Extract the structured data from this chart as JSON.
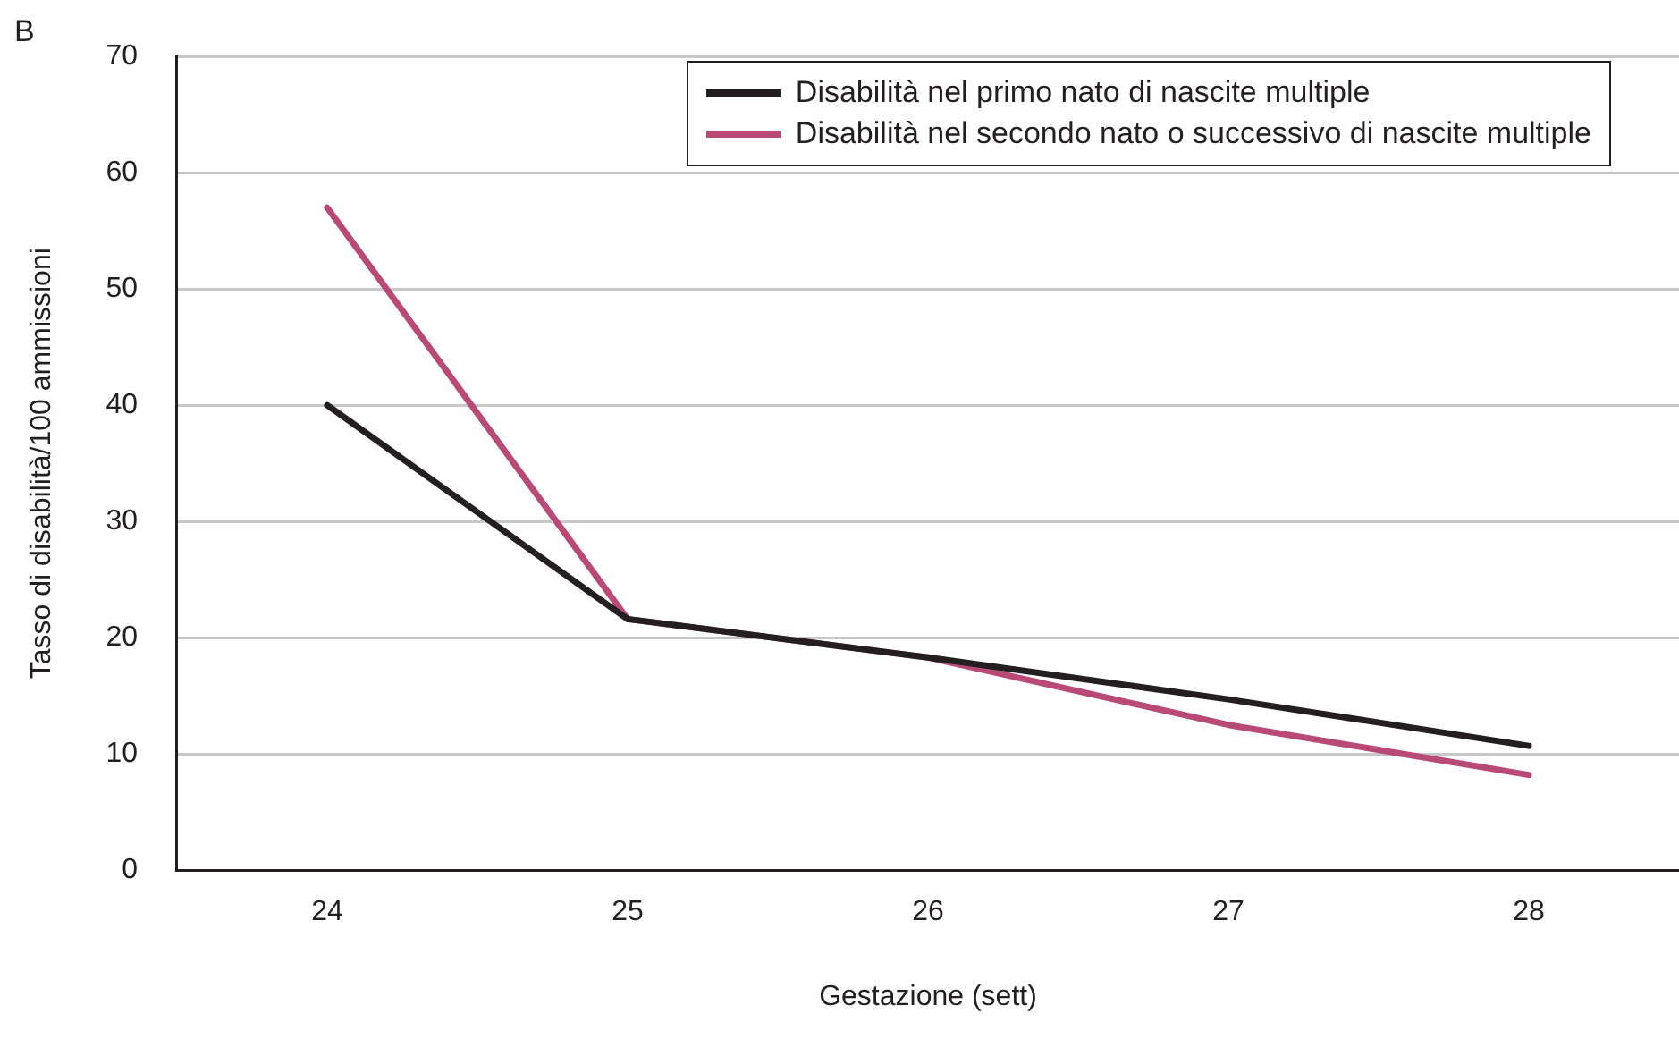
{
  "chart_data": {
    "type": "line",
    "xlabel": "Gestazione (sett)",
    "ylabel": "Tasso di disabilità/100 ammissioni",
    "annotations": [
      "B"
    ],
    "categories": [
      "24",
      "25",
      "26",
      "27",
      "28"
    ],
    "series": [
      {
        "name": "Disabilità nel primo nato di nascite multiple",
        "color": "#231f20",
        "values": [
          40,
          21.6,
          18.3,
          14.7,
          10.7
        ]
      },
      {
        "name": "Disabilità nel secondo nato o successivo di nascite multiple",
        "color": "#b94a78",
        "values": [
          57,
          21.6,
          18.3,
          12.5,
          8.2
        ]
      }
    ],
    "ylim": [
      0,
      70
    ],
    "yticks": [
      0,
      10,
      20,
      30,
      40,
      50,
      60,
      70
    ],
    "grid": "y",
    "legend": "top right",
    "marker": "none",
    "line_style": "solid"
  }
}
